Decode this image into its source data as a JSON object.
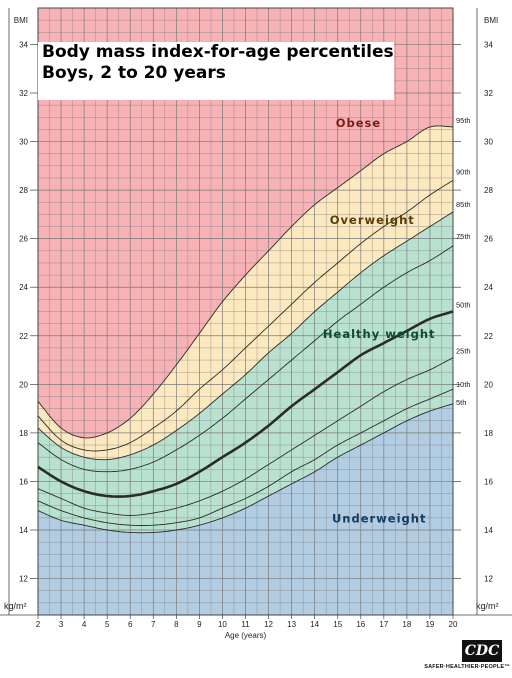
{
  "title": {
    "line1": "Body mass index-for-age percentiles",
    "line2": "Boys, 2 to 20 years"
  },
  "logo": {
    "text": "CDC",
    "tagline": "SAFER·HEALTHIER·PEOPLE™"
  },
  "colors": {
    "obese": "#f7b2b6",
    "overweight": "#fde9bf",
    "healthy": "#b9e1d0",
    "underweight": "#b2cde2",
    "grid": "#7a7a7a",
    "curve": "#2b2b2b"
  },
  "chart_data": {
    "type": "line",
    "title": "Body mass index-for-age percentiles Boys, 2 to 20 years",
    "xlabel": "Age (years)",
    "ylabel_top": "BMI",
    "unit_label": "kg/m²",
    "xlim": [
      2,
      20
    ],
    "ylim": [
      10.5,
      35.5
    ],
    "x_ticks": [
      2,
      3,
      4,
      5,
      6,
      7,
      8,
      9,
      10,
      11,
      12,
      13,
      14,
      15,
      16,
      17,
      18,
      19,
      20
    ],
    "y_ticks": [
      12,
      14,
      16,
      18,
      20,
      22,
      24,
      26,
      28,
      30,
      32,
      34
    ],
    "grid": true,
    "zones": [
      {
        "name": "Obese",
        "label_x": 15.9,
        "label_y": 30.6
      },
      {
        "name": "Overweight",
        "label_x": 16.5,
        "label_y": 26.6
      },
      {
        "name": "Healthy weight",
        "label_x": 16.8,
        "label_y": 21.9
      },
      {
        "name": "Underweight",
        "label_x": 16.8,
        "label_y": 14.3
      }
    ],
    "x": [
      2,
      3,
      4,
      5,
      6,
      7,
      8,
      9,
      10,
      11,
      12,
      13,
      14,
      15,
      16,
      17,
      18,
      19,
      20
    ],
    "series": [
      {
        "name": "95th",
        "values": [
          19.3,
          18.2,
          17.8,
          18.0,
          18.6,
          19.6,
          20.8,
          22.1,
          23.4,
          24.5,
          25.5,
          26.5,
          27.4,
          28.1,
          28.8,
          29.5,
          30.0,
          30.6,
          30.6
        ]
      },
      {
        "name": "90th",
        "values": [
          18.7,
          17.7,
          17.3,
          17.3,
          17.6,
          18.2,
          18.9,
          19.8,
          20.6,
          21.5,
          22.4,
          23.3,
          24.2,
          25.0,
          25.8,
          26.5,
          27.1,
          27.8,
          28.4
        ]
      },
      {
        "name": "85th",
        "values": [
          18.2,
          17.4,
          17.0,
          16.9,
          17.1,
          17.5,
          18.1,
          18.8,
          19.6,
          20.4,
          21.3,
          22.1,
          23.0,
          23.8,
          24.6,
          25.3,
          25.9,
          26.5,
          27.1
        ]
      },
      {
        "name": "75th",
        "values": [
          17.6,
          16.9,
          16.5,
          16.4,
          16.5,
          16.8,
          17.3,
          17.9,
          18.6,
          19.4,
          20.2,
          21.0,
          21.8,
          22.6,
          23.3,
          24.0,
          24.6,
          25.1,
          25.7
        ]
      },
      {
        "name": "50th",
        "values": [
          16.6,
          16.0,
          15.6,
          15.4,
          15.4,
          15.6,
          15.9,
          16.4,
          17.0,
          17.6,
          18.3,
          19.1,
          19.8,
          20.5,
          21.2,
          21.7,
          22.2,
          22.7,
          23.0
        ]
      },
      {
        "name": "25th",
        "values": [
          15.7,
          15.3,
          14.9,
          14.7,
          14.6,
          14.7,
          14.9,
          15.2,
          15.6,
          16.1,
          16.7,
          17.3,
          17.9,
          18.5,
          19.1,
          19.7,
          20.2,
          20.6,
          21.1
        ]
      },
      {
        "name": "10th",
        "values": [
          15.2,
          14.8,
          14.5,
          14.3,
          14.2,
          14.2,
          14.3,
          14.5,
          14.9,
          15.3,
          15.8,
          16.4,
          16.9,
          17.5,
          18.0,
          18.5,
          19.0,
          19.4,
          19.8
        ]
      },
      {
        "name": "5th",
        "values": [
          14.8,
          14.4,
          14.2,
          14.0,
          13.9,
          13.9,
          14.0,
          14.2,
          14.5,
          14.9,
          15.4,
          15.9,
          16.4,
          17.0,
          17.5,
          18.0,
          18.5,
          18.9,
          19.2
        ]
      }
    ]
  }
}
